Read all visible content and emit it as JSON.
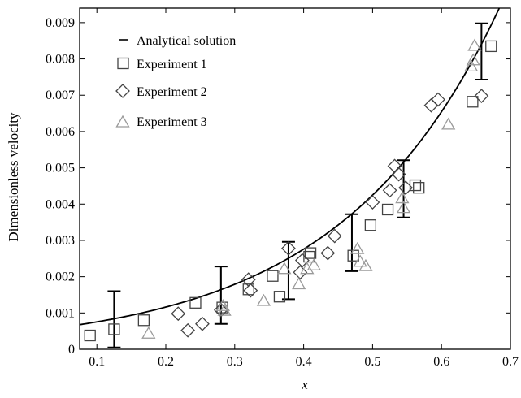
{
  "chart_data": {
    "type": "scatter",
    "title": "",
    "xlabel": "x",
    "ylabel": "Dimensionless velocity",
    "xlim": [
      0.075,
      0.7
    ],
    "ylim": [
      0,
      0.0094
    ],
    "x_ticks": [
      0.1,
      0.2,
      0.3,
      0.4,
      0.5,
      0.6,
      0.7
    ],
    "x_tick_labels": [
      "0.1",
      "0.2",
      "0.3",
      "0.4",
      "0.5",
      "0.6",
      "0.7"
    ],
    "y_ticks": [
      0,
      0.001,
      0.002,
      0.003,
      0.004,
      0.005,
      0.006,
      0.007,
      0.008,
      0.009
    ],
    "y_tick_labels": [
      "0",
      "0.001",
      "0.002",
      "0.003",
      "0.004",
      "0.005",
      "0.006",
      "0.007",
      "0.008",
      "0.009"
    ],
    "grid": false,
    "legend_position": "top-left",
    "analytical": {
      "name": "Analytical solution",
      "model": "exponential",
      "a": 0.00049,
      "b": 4.32,
      "error_bars": [
        {
          "x": 0.125,
          "low": 5e-05,
          "high": 0.0016
        },
        {
          "x": 0.28,
          "low": 0.0007,
          "high": 0.00228
        },
        {
          "x": 0.378,
          "low": 0.00138,
          "high": 0.00296
        },
        {
          "x": 0.47,
          "low": 0.00215,
          "high": 0.00372
        },
        {
          "x": 0.545,
          "low": 0.00363,
          "high": 0.00521
        },
        {
          "x": 0.658,
          "low": 0.00743,
          "high": 0.00898
        }
      ]
    },
    "series": [
      {
        "name": "Experiment 1",
        "marker": "square",
        "color": "#444444",
        "points": [
          [
            0.09,
            0.00038
          ],
          [
            0.125,
            0.00055
          ],
          [
            0.168,
            0.0008
          ],
          [
            0.243,
            0.00128
          ],
          [
            0.282,
            0.00115
          ],
          [
            0.32,
            0.00165
          ],
          [
            0.355,
            0.00202
          ],
          [
            0.365,
            0.00145
          ],
          [
            0.408,
            0.00255
          ],
          [
            0.41,
            0.00265
          ],
          [
            0.472,
            0.00258
          ],
          [
            0.497,
            0.00342
          ],
          [
            0.522,
            0.00385
          ],
          [
            0.562,
            0.00452
          ],
          [
            0.567,
            0.00445
          ],
          [
            0.645,
            0.00682
          ],
          [
            0.672,
            0.00835
          ]
        ]
      },
      {
        "name": "Experiment 2",
        "marker": "diamond",
        "color": "#444444",
        "points": [
          [
            0.218,
            0.00098
          ],
          [
            0.232,
            0.00052
          ],
          [
            0.253,
            0.0007
          ],
          [
            0.28,
            0.00108
          ],
          [
            0.32,
            0.00192
          ],
          [
            0.323,
            0.00162
          ],
          [
            0.378,
            0.00278
          ],
          [
            0.395,
            0.00212
          ],
          [
            0.398,
            0.00245
          ],
          [
            0.435,
            0.00265
          ],
          [
            0.445,
            0.00312
          ],
          [
            0.5,
            0.00405
          ],
          [
            0.525,
            0.00438
          ],
          [
            0.532,
            0.00505
          ],
          [
            0.538,
            0.00482
          ],
          [
            0.548,
            0.00445
          ],
          [
            0.585,
            0.00672
          ],
          [
            0.595,
            0.00688
          ],
          [
            0.658,
            0.00698
          ]
        ]
      },
      {
        "name": "Experiment 3",
        "marker": "triangle",
        "color": "#9a9a9a",
        "points": [
          [
            0.175,
            0.00042
          ],
          [
            0.283,
            0.00118
          ],
          [
            0.285,
            0.00105
          ],
          [
            0.342,
            0.00132
          ],
          [
            0.372,
            0.0022
          ],
          [
            0.393,
            0.00178
          ],
          [
            0.405,
            0.0022
          ],
          [
            0.415,
            0.0023
          ],
          [
            0.478,
            0.00275
          ],
          [
            0.482,
            0.0024
          ],
          [
            0.49,
            0.00228
          ],
          [
            0.543,
            0.00415
          ],
          [
            0.545,
            0.00388
          ],
          [
            0.61,
            0.00618
          ],
          [
            0.643,
            0.00778
          ],
          [
            0.646,
            0.00795
          ],
          [
            0.648,
            0.00835
          ]
        ]
      }
    ]
  }
}
